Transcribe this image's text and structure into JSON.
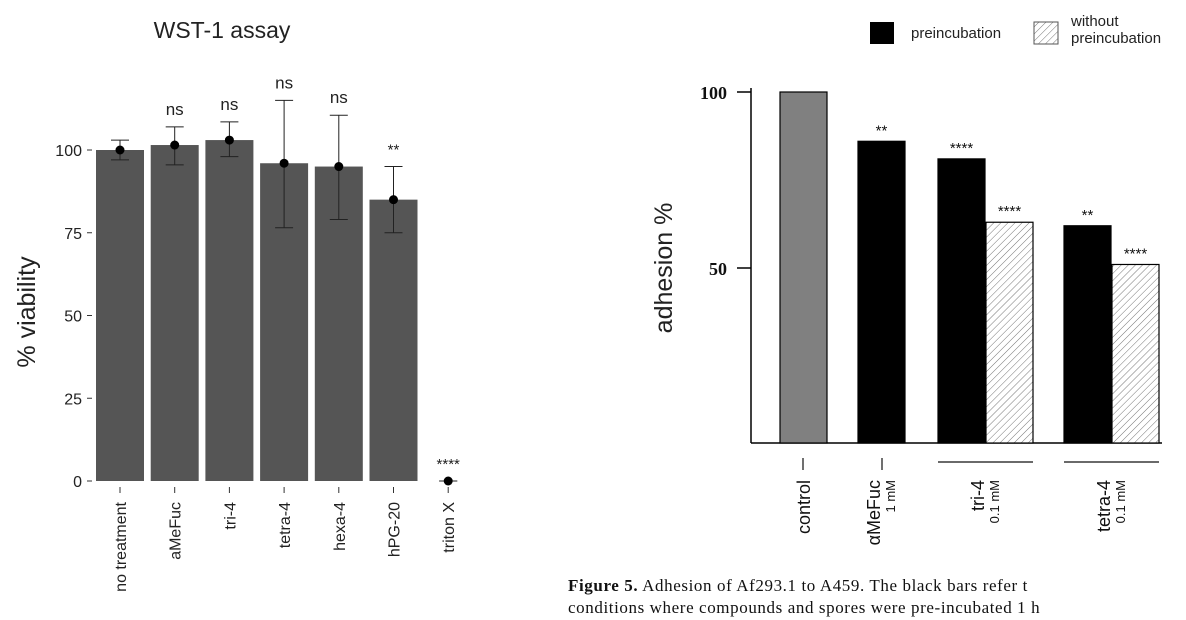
{
  "chart_data": [
    {
      "type": "bar",
      "title": "WST-1 assay",
      "xlabel": "",
      "ylabel": "% viability",
      "ylim": [
        0,
        125
      ],
      "yticks": [
        0,
        25,
        50,
        75,
        100
      ],
      "categories": [
        "no treatment",
        "aMeFuc",
        "tri-4",
        "tetra-4",
        "hexa-4",
        "hPG-20",
        "triton X"
      ],
      "values": [
        100,
        101.5,
        103,
        96,
        95,
        85,
        0
      ],
      "error_low": [
        97,
        95.5,
        98,
        76.5,
        79,
        75,
        0
      ],
      "error_high": [
        103,
        107,
        108.5,
        115,
        110.5,
        95,
        0
      ],
      "annotations": [
        "",
        "ns",
        "ns",
        "ns",
        "ns",
        "**",
        "****"
      ],
      "bar_color": "#555555",
      "grid": false
    },
    {
      "type": "bar",
      "title": "",
      "xlabel": "",
      "ylabel": "adhesion %",
      "ylim": [
        0,
        100
      ],
      "yticks": [
        50,
        100
      ],
      "legend": [
        {
          "label": "preincubation",
          "style": "solid",
          "color": "#000000"
        },
        {
          "label": "without\npreincubation",
          "style": "hatched",
          "color": "#ffffff"
        }
      ],
      "legend_position": "top-right",
      "groups": [
        {
          "label": "control",
          "sub": ""
        },
        {
          "label": "αMeFuc",
          "sub": "1 mM"
        },
        {
          "label": "tri-4",
          "sub": "0.1 mM"
        },
        {
          "label": "tetra-4",
          "sub": "0.1 mM"
        }
      ],
      "bars": [
        {
          "group": 0,
          "value": 100,
          "style": "gray",
          "annotation": ""
        },
        {
          "group": 1,
          "value": 86,
          "style": "solid",
          "annotation": "**"
        },
        {
          "group": 2,
          "value": 81,
          "style": "solid",
          "annotation": "****"
        },
        {
          "group": 2,
          "value": 63,
          "style": "hatched",
          "annotation": "****"
        },
        {
          "group": 3,
          "value": 62,
          "style": "solid",
          "annotation": "**"
        },
        {
          "group": 3,
          "value": 51,
          "style": "hatched",
          "annotation": "****"
        }
      ],
      "gray_color": "#808080",
      "grid": false
    }
  ],
  "caption": {
    "bold": "Figure 5.",
    "line1": " Adhesion of Af293.1 to A459. The black bars refer t",
    "line2": "conditions where compounds and spores were pre-incubated 1 h"
  }
}
